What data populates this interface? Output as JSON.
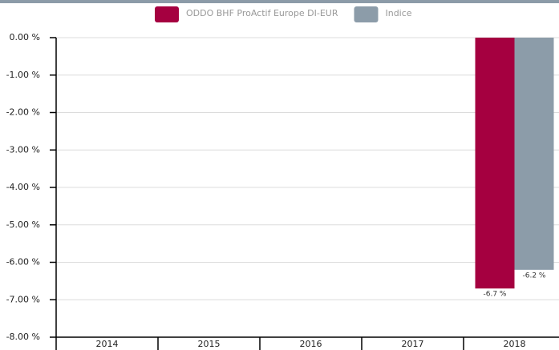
{
  "chart_data": {
    "type": "bar",
    "categories": [
      "2014",
      "2015",
      "2016",
      "2017",
      "2018"
    ],
    "series": [
      {
        "name": "ODDO BHF ProActif Europe DI-EUR",
        "color": "#a50040",
        "values": [
          null,
          null,
          null,
          null,
          -6.7
        ],
        "value_labels": [
          null,
          null,
          null,
          null,
          "-6.7 %"
        ]
      },
      {
        "name": "Indice",
        "color": "#8c9ca9",
        "values": [
          null,
          null,
          null,
          null,
          -6.2
        ],
        "value_labels": [
          null,
          null,
          null,
          null,
          "-6.2 %"
        ]
      }
    ],
    "ylim": [
      -8,
      0
    ],
    "yticks": [
      {
        "value": 0,
        "label": "0.00 %"
      },
      {
        "value": -1,
        "label": "-1.00 %"
      },
      {
        "value": -2,
        "label": "-2.00 %"
      },
      {
        "value": -3,
        "label": "-3.00 %"
      },
      {
        "value": -4,
        "label": "-4.00 %"
      },
      {
        "value": -5,
        "label": "-5.00 %"
      },
      {
        "value": -6,
        "label": "-6.00 %"
      },
      {
        "value": -7,
        "label": "-7.00 %"
      },
      {
        "value": -8,
        "label": "-8.00 %"
      }
    ],
    "grid": true,
    "legend": "top"
  }
}
